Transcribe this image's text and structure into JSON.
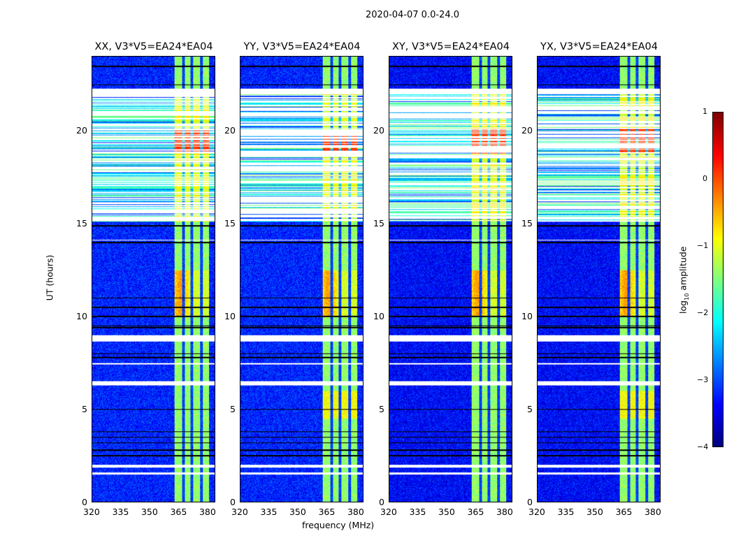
{
  "chart_data": {
    "type": "heatmap",
    "title": "2020-04-07 0.0-24.0",
    "xlabel": "frequency (MHz)",
    "ylabel": "UT (hours)",
    "xlim": [
      320,
      384
    ],
    "ylim": [
      0,
      24
    ],
    "xticks": [
      "320",
      "335",
      "350",
      "365",
      "380"
    ],
    "xtick_values": [
      320,
      335,
      350,
      365,
      380
    ],
    "yticks": [
      "0",
      "5",
      "10",
      "15",
      "20"
    ],
    "ytick_values": [
      0,
      5,
      10,
      15,
      20
    ],
    "panels": [
      {
        "title": "XX, V3*V5=EA24*EA04"
      },
      {
        "title": "YY, V3*V5=EA24*EA04"
      },
      {
        "title": "XY, V3*V5=EA24*EA04"
      },
      {
        "title": "YX, V3*V5=EA24*EA04"
      }
    ],
    "colorbar": {
      "label_main": "log",
      "label_sub": "10",
      "label_tail": " amplitude",
      "range": [
        -4,
        1
      ],
      "ticks": [
        "1",
        "0",
        "−1",
        "−2",
        "−3",
        "−4"
      ],
      "tick_values": [
        1,
        0,
        -1,
        -2,
        -3,
        -4
      ],
      "colormap": "jet"
    },
    "background_level": -3.2,
    "rfi_band_mhz": [
      363,
      381
    ],
    "rfi_gaps_mhz": [
      367.5,
      372,
      377
    ],
    "flagged_rows_hours": [
      [
        1.5,
        1.6
      ],
      [
        1.85,
        2.0
      ],
      [
        6.3,
        6.5
      ],
      [
        7.4,
        7.5
      ],
      [
        8.65,
        9.0
      ],
      [
        14.1,
        14.15
      ],
      [
        22.0,
        22.3
      ]
    ],
    "sparse_period_hours": [
      15.1,
      22.0
    ],
    "black_rows_hours": [
      2.5,
      2.8,
      3.2,
      3.5,
      3.8,
      5.0,
      7.8,
      8.0,
      9.4,
      9.5,
      10.0,
      10.5,
      11.0,
      14.0,
      14.9,
      22.5,
      23.5
    ]
  }
}
